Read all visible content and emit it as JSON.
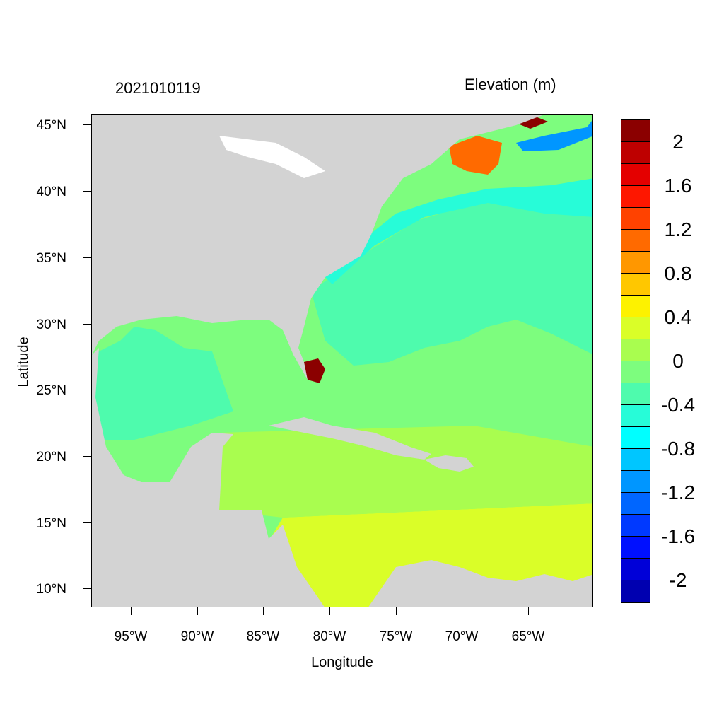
{
  "header": {
    "date_label": "2021010119",
    "variable_label": "Elevation (m)"
  },
  "axes": {
    "x_title": "Longitude",
    "y_title": "Latitude",
    "x_ticks": [
      {
        "lon": -95,
        "label": "95°W"
      },
      {
        "lon": -90,
        "label": "90°W"
      },
      {
        "lon": -85,
        "label": "85°W"
      },
      {
        "lon": -80,
        "label": "80°W"
      },
      {
        "lon": -75,
        "label": "75°W"
      },
      {
        "lon": -70,
        "label": "70°W"
      },
      {
        "lon": -65,
        "label": "65°W"
      }
    ],
    "y_ticks": [
      {
        "lat": 45,
        "label": "45°N"
      },
      {
        "lat": 40,
        "label": "40°N"
      },
      {
        "lat": 35,
        "label": "35°N"
      },
      {
        "lat": 30,
        "label": "30°N"
      },
      {
        "lat": 25,
        "label": "25°N"
      },
      {
        "lat": 20,
        "label": "20°N"
      },
      {
        "lat": 15,
        "label": "15°N"
      },
      {
        "lat": 10,
        "label": "10°N"
      }
    ],
    "lon_range": [
      -98,
      -60.2
    ],
    "lat_range": [
      8.5,
      45.8
    ]
  },
  "colorbar": {
    "labels": [
      "2",
      "1.6",
      "1.2",
      "0.8",
      "0.4",
      "0",
      "-0.4",
      "-0.8",
      "-1.2",
      "-1.6",
      "-2"
    ],
    "colors_top_to_bottom": [
      "#8b0000",
      "#be0000",
      "#e40000",
      "#fe1700",
      "#ff4200",
      "#ff6a00",
      "#ff9700",
      "#ffc700",
      "#fdf200",
      "#dafe28",
      "#a9fd4f",
      "#7dfd7e",
      "#4efbad",
      "#27fcd8",
      "#00ffff",
      "#00c6ff",
      "#0096ff",
      "#0066ff",
      "#0039ff",
      "#0010ff",
      "#0000d8",
      "#0000b0"
    ]
  },
  "map": {
    "land_color": "#d3d3d3",
    "lake_color": "#ffffff",
    "field_regions": [
      {
        "region": "Caribbean Sea south",
        "elevation": 0.35,
        "color": "#dafe28"
      },
      {
        "region": "Caribbean Sea north",
        "elevation": 0.15,
        "color": "#a9fd4f"
      },
      {
        "region": "Gulf of Mexico center",
        "elevation": 0.0,
        "color": "#7dfd7e"
      },
      {
        "region": "Western Gulf of Mexico",
        "elevation": -0.3,
        "color": "#4efbad"
      },
      {
        "region": "Atlantic Ocean",
        "elevation": -0.3,
        "color": "#4efbad"
      },
      {
        "region": "Northeast shelf",
        "elevation": -0.55,
        "color": "#27fcd8"
      },
      {
        "region": "Southwest Florida coast",
        "elevation": 2.1,
        "color": "#8b0000"
      },
      {
        "region": "Gulf of Maine",
        "elevation": 1.0,
        "color": "#ff6a00"
      },
      {
        "region": "Bay of Fundy",
        "elevation": 2.1,
        "color": "#8b0000"
      },
      {
        "region": "Scotian shelf",
        "elevation": -1.0,
        "color": "#0096ff"
      }
    ]
  }
}
